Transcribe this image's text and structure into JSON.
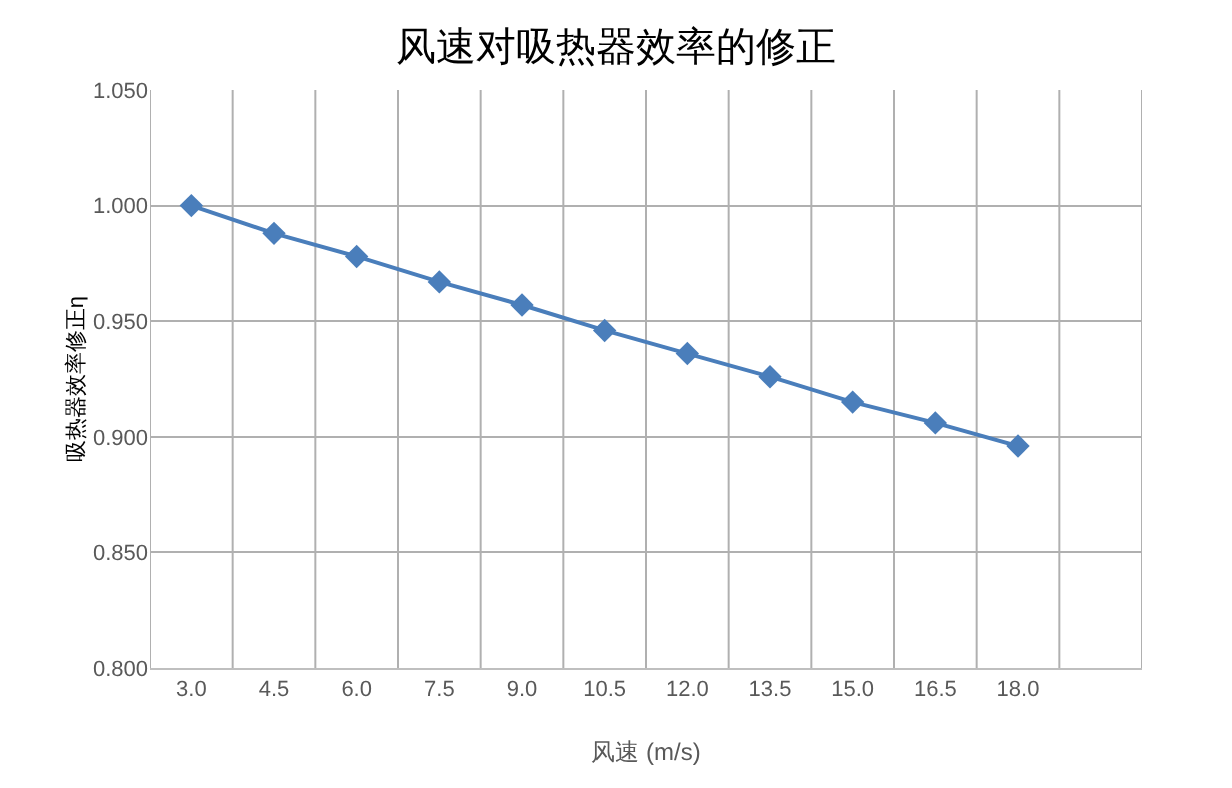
{
  "chart_data": {
    "type": "line",
    "title": "风速对吸热器效率的修正",
    "xlabel": "风速 (m/s)",
    "ylabel": "吸热器效率修正η",
    "categories": [
      "3.0",
      "4.5",
      "6.0",
      "7.5",
      "9.0",
      "10.5",
      "12.0",
      "13.5",
      "15.0",
      "16.5",
      "18.0",
      null
    ],
    "series": [
      {
        "color": "#4a7ebb",
        "values": [
          1.0,
          0.988,
          0.978,
          0.967,
          0.957,
          0.946,
          0.936,
          0.926,
          0.915,
          0.906,
          0.896,
          null
        ]
      }
    ],
    "ylim": [
      0.8,
      1.05
    ],
    "yticks": [
      {
        "value": 0.8,
        "label": "0.800"
      },
      {
        "value": 0.85,
        "label": "0.850"
      },
      {
        "value": 0.9,
        "label": "0.900"
      },
      {
        "value": 0.95,
        "label": "0.950"
      },
      {
        "value": 1.0,
        "label": "1.000"
      },
      {
        "value": 1.05,
        "label": "1.050"
      }
    ],
    "grid": true,
    "marker": "diamond",
    "line_style": "solid"
  }
}
